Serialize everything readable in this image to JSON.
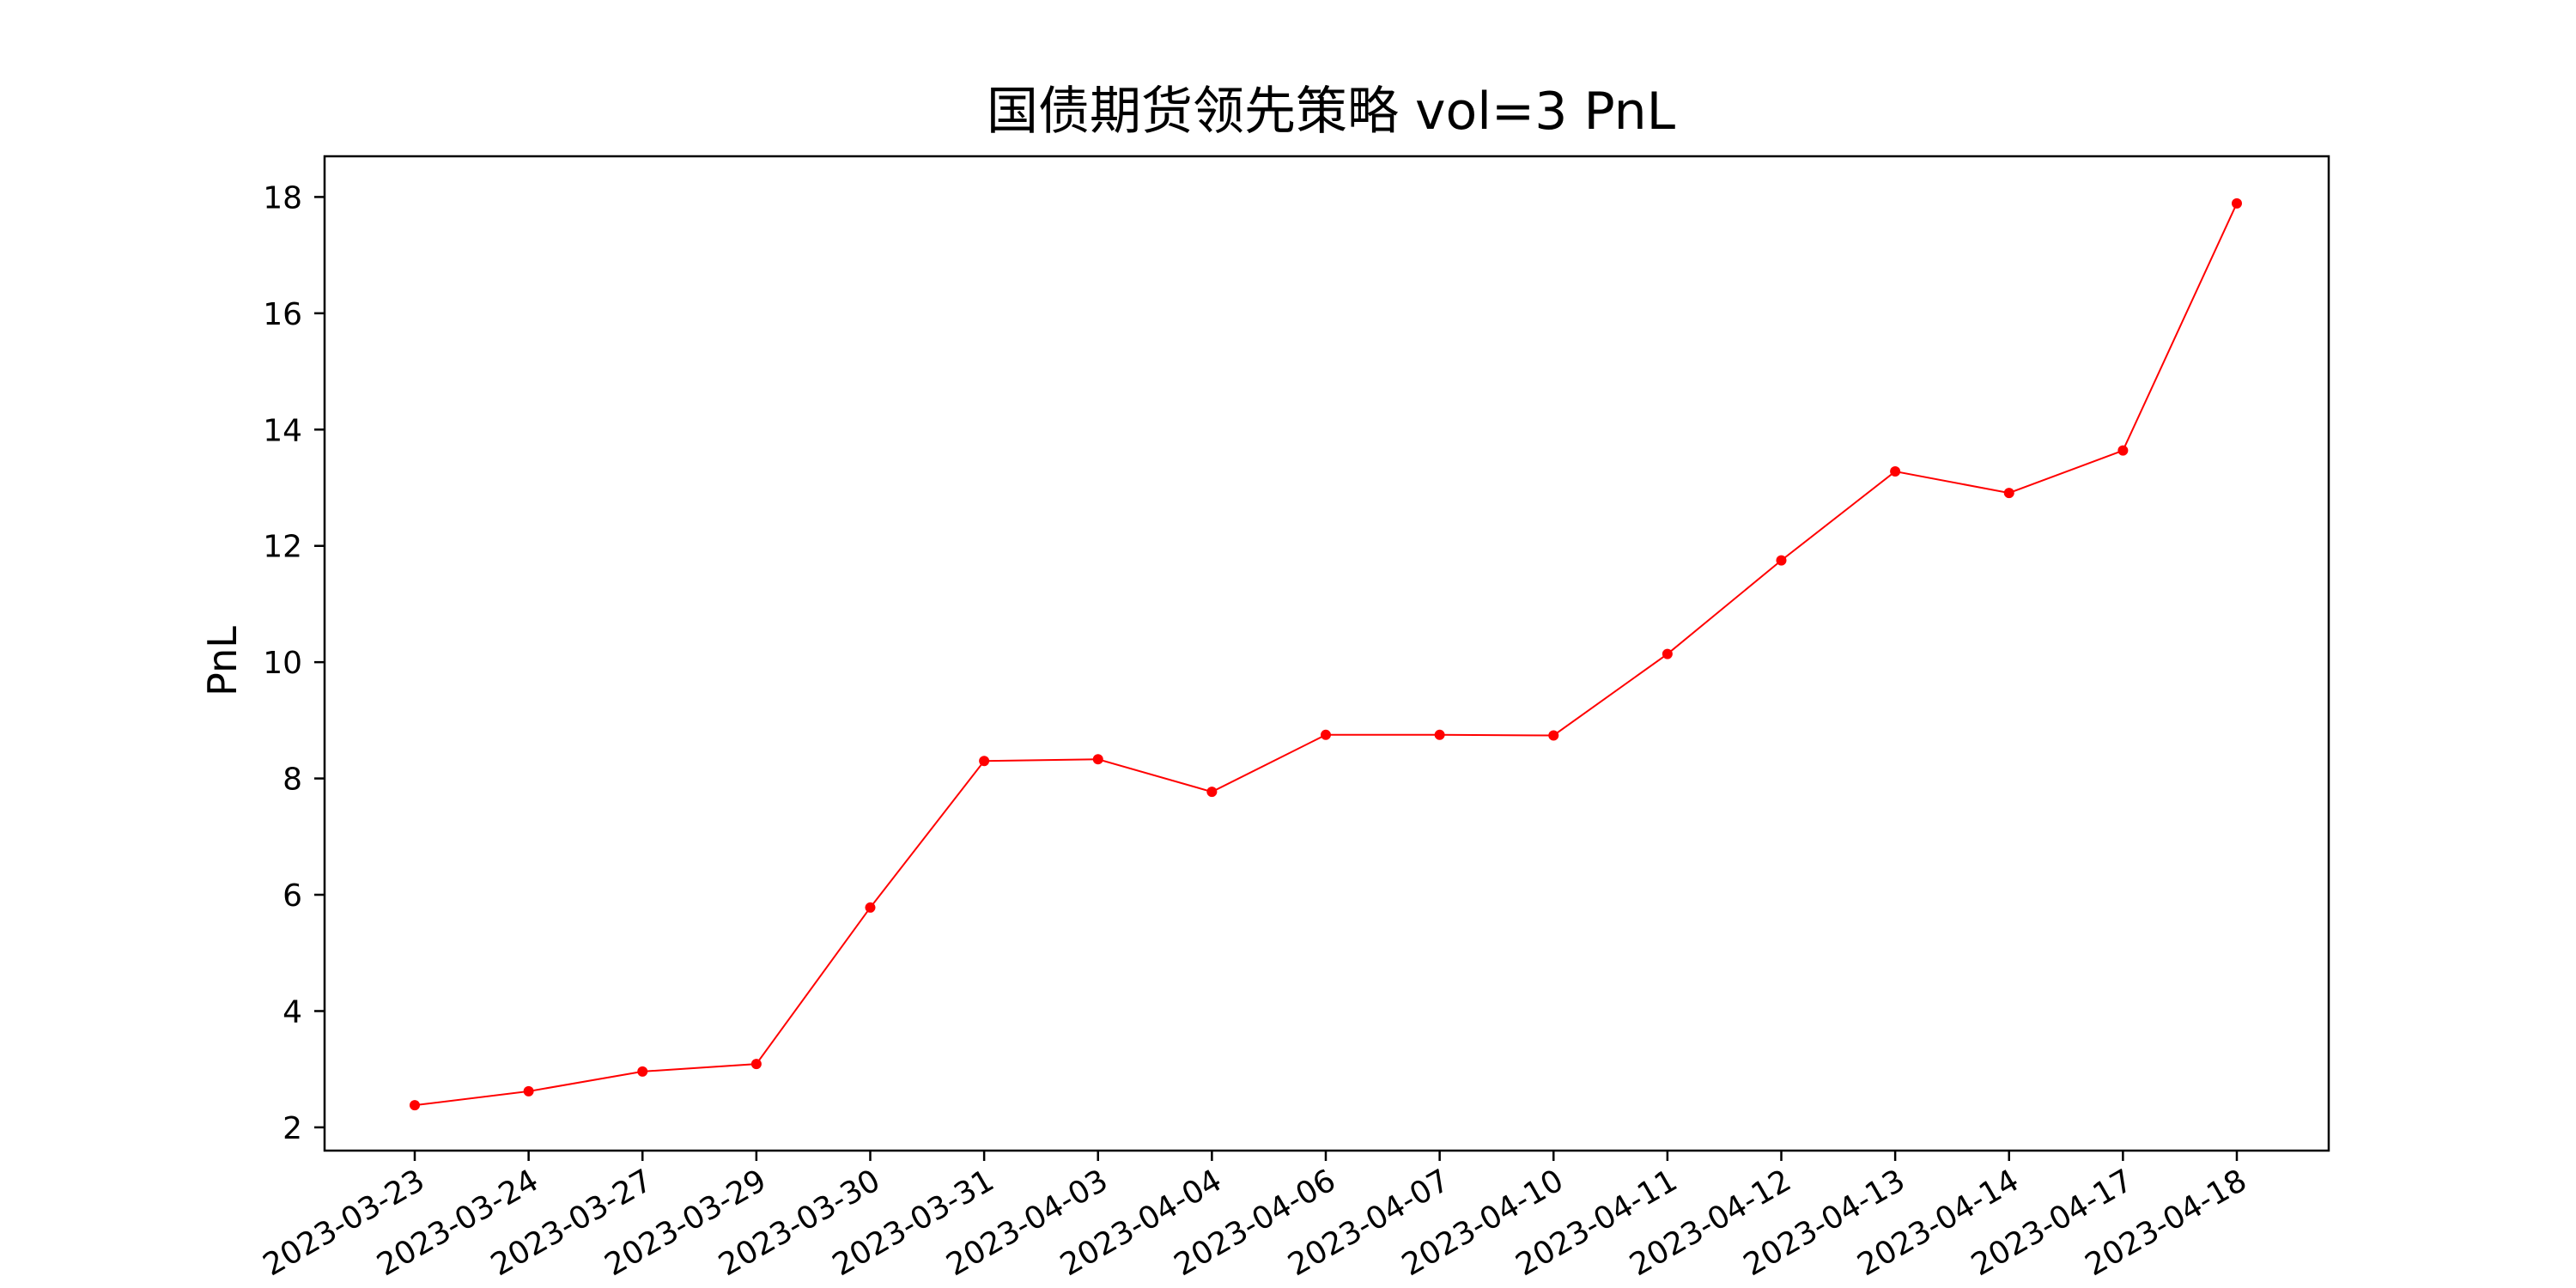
{
  "chart_data": {
    "type": "line",
    "title": "国债期货领先策略 vol=3 PnL",
    "xlabel": "",
    "ylabel": "PnL",
    "x": [
      "2023-03-23",
      "2023-03-24",
      "2023-03-27",
      "2023-03-29",
      "2023-03-30",
      "2023-03-31",
      "2023-04-03",
      "2023-04-04",
      "2023-04-06",
      "2023-04-07",
      "2023-04-10",
      "2023-04-11",
      "2023-04-12",
      "2023-04-13",
      "2023-04-14",
      "2023-04-17",
      "2023-04-18"
    ],
    "series": [
      {
        "values": [
          2.38,
          2.62,
          2.96,
          3.09,
          5.78,
          8.3,
          8.33,
          7.77,
          8.75,
          8.75,
          8.74,
          10.14,
          11.75,
          13.28,
          12.91,
          13.64,
          17.89
        ],
        "color": "#ff0000"
      }
    ],
    "yticks": [
      2,
      4,
      6,
      8,
      10,
      12,
      14,
      16,
      18
    ],
    "ylim": [
      1.6,
      18.7
    ],
    "grid": false,
    "legend": "none",
    "xtick_rotation": 30
  }
}
